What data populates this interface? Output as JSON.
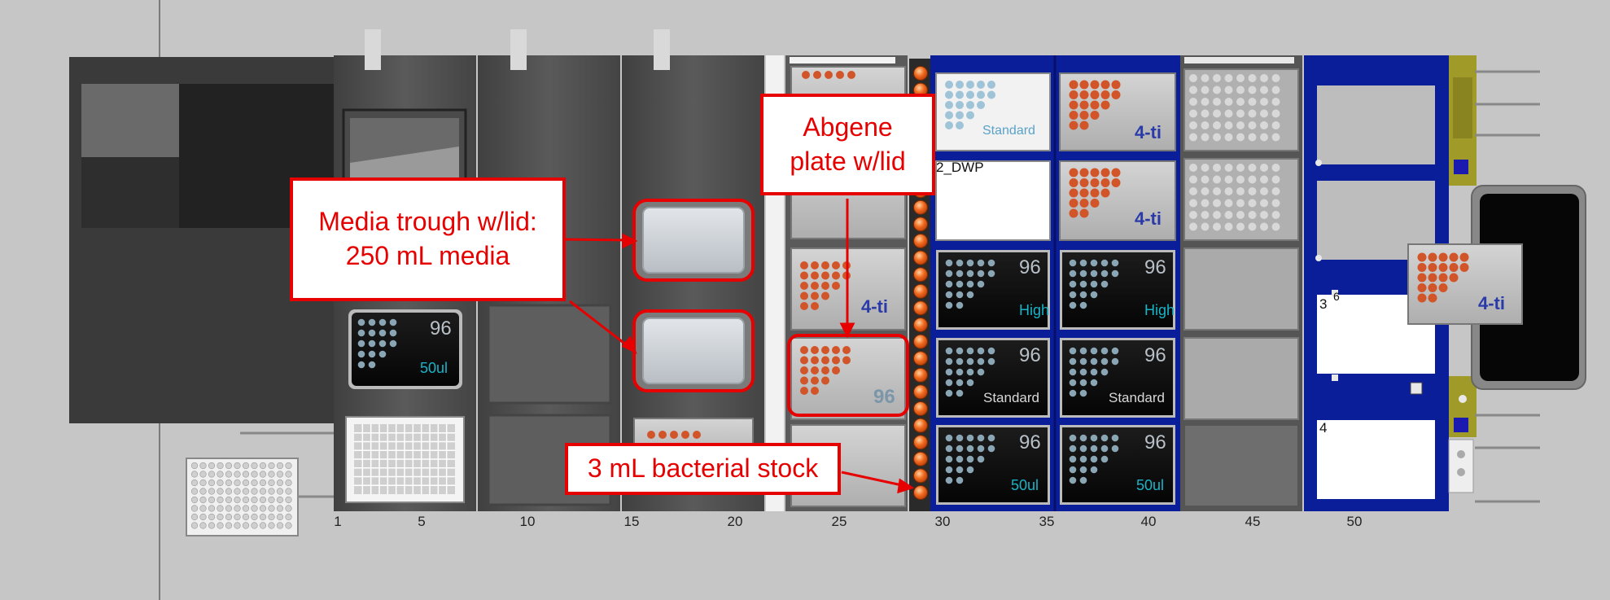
{
  "deck": {
    "axis_numbers": [
      "1",
      "5",
      "10",
      "15",
      "20",
      "25",
      "30",
      "35",
      "40",
      "45",
      "50"
    ],
    "slot_labels": [
      "2_DWP",
      "3",
      "6",
      "4"
    ]
  },
  "tips": {
    "mark_96": "96",
    "type_50ul": "50ul",
    "type_high": "High",
    "type_standard": "Standard"
  },
  "plates": {
    "label_4ti": "4-ti",
    "label_96": "96",
    "label_standard": "Standard"
  },
  "callouts": {
    "media_trough_line1": "Media trough w/lid:",
    "media_trough_line2": "250 mL media",
    "abgene_line1": "Abgene",
    "abgene_line2": "plate w/lid",
    "bacterial_stock": "3 mL bacterial stock"
  },
  "colors": {
    "annotation_red": "#e60000",
    "deck_blue": "#0a1e9a",
    "orange_well": "#d2552a",
    "tip_cyan": "#18b4c8"
  }
}
